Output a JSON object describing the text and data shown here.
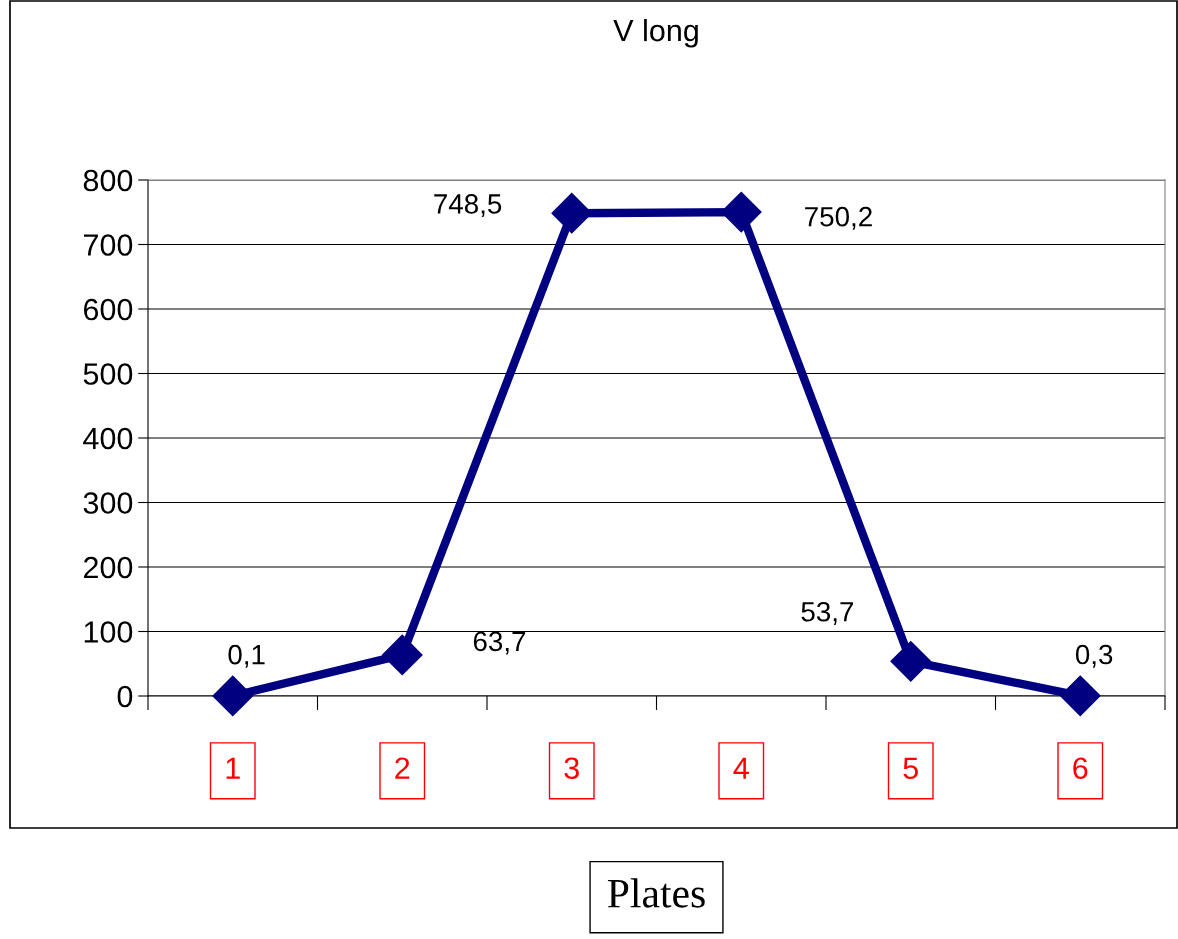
{
  "chart_data": {
    "type": "line",
    "title": "V long",
    "xlabel": "Plates",
    "categories": [
      "1",
      "2",
      "3",
      "4",
      "5",
      "6"
    ],
    "series": [
      {
        "color": "#000080",
        "values": [
          0.1,
          63.7,
          748.5,
          750.2,
          53.7,
          0.3
        ],
        "value_labels": [
          "0,1",
          "63,7",
          "748,5",
          "750,2",
          "53,7",
          "0,3"
        ]
      }
    ],
    "ylim": [
      0,
      800
    ],
    "yticks": [
      0,
      100,
      200,
      300,
      400,
      500,
      600,
      700,
      800
    ],
    "grid": "y",
    "marker": "diamond",
    "line_style": "solid",
    "legend": false
  }
}
